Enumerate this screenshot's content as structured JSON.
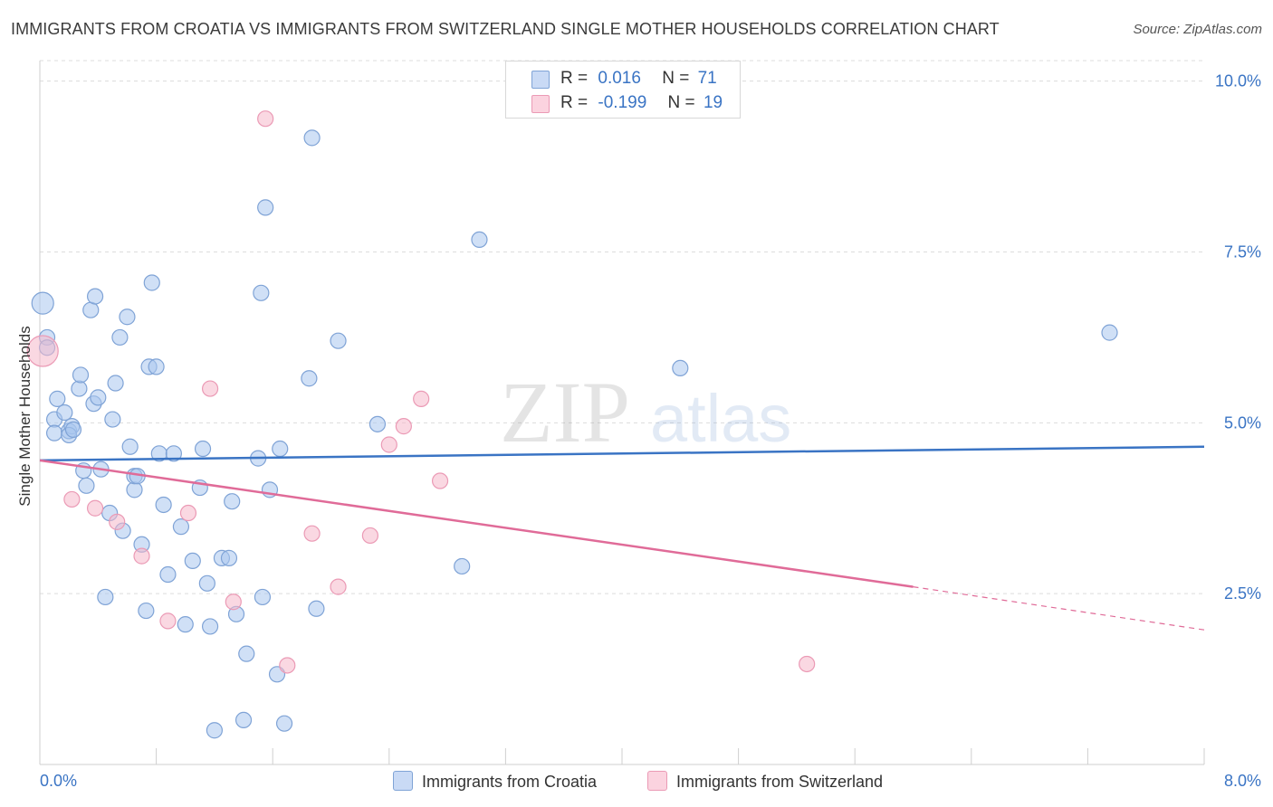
{
  "title": "IMMIGRANTS FROM CROATIA VS IMMIGRANTS FROM SWITZERLAND SINGLE MOTHER HOUSEHOLDS CORRELATION CHART",
  "source": "Source: ZipAtlas.com",
  "watermark": {
    "zip": "ZIP",
    "atlas": "atlas"
  },
  "legend_top": [
    {
      "r_label": "R =",
      "r_value": "0.016",
      "n_label": "N =",
      "n_value": "71",
      "color": "#a9c6ee"
    },
    {
      "r_label": "R =",
      "r_value": "-0.199",
      "n_label": "N =",
      "n_value": "19",
      "color": "#f6b8cb"
    }
  ],
  "chart_data": {
    "type": "scatter",
    "title": "IMMIGRANTS FROM CROATIA VS IMMIGRANTS FROM SWITZERLAND SINGLE MOTHER HOUSEHOLDS CORRELATION CHART",
    "xlabel": "",
    "ylabel": "Single Mother Households",
    "xlim": [
      0,
      8
    ],
    "ylim": [
      0,
      10.3
    ],
    "x_tick_labels": [
      "0.0%",
      "8.0%"
    ],
    "y_ticks": [
      2.5,
      5.0,
      7.5,
      10.0
    ],
    "y_tick_labels": [
      "2.5%",
      "5.0%",
      "7.5%",
      "10.0%"
    ],
    "grid": true,
    "legend_position": "bottom",
    "series": [
      {
        "name": "Immigrants from Croatia",
        "color": "#3a74c4",
        "fill": "#a9c6ee",
        "trend": {
          "x": [
            0.0,
            8.0
          ],
          "y": [
            4.45,
            4.65
          ]
        },
        "points": [
          [
            0.02,
            6.75
          ],
          [
            0.05,
            6.25
          ],
          [
            0.05,
            6.1
          ],
          [
            0.1,
            5.05
          ],
          [
            0.12,
            5.35
          ],
          [
            0.1,
            4.85
          ],
          [
            0.17,
            5.15
          ],
          [
            0.2,
            4.88
          ],
          [
            0.22,
            4.95
          ],
          [
            0.2,
            4.82
          ],
          [
            0.23,
            4.9
          ],
          [
            0.27,
            5.5
          ],
          [
            0.28,
            5.7
          ],
          [
            0.3,
            4.3
          ],
          [
            0.32,
            4.08
          ],
          [
            0.35,
            6.65
          ],
          [
            0.37,
            5.28
          ],
          [
            0.38,
            6.85
          ],
          [
            0.4,
            5.37
          ],
          [
            0.42,
            4.32
          ],
          [
            0.45,
            2.45
          ],
          [
            0.48,
            3.68
          ],
          [
            0.5,
            5.05
          ],
          [
            0.52,
            5.58
          ],
          [
            0.57,
            3.42
          ],
          [
            0.55,
            6.25
          ],
          [
            0.6,
            6.55
          ],
          [
            0.62,
            4.65
          ],
          [
            0.65,
            4.02
          ],
          [
            0.65,
            4.22
          ],
          [
            0.67,
            4.22
          ],
          [
            0.7,
            3.22
          ],
          [
            0.73,
            2.25
          ],
          [
            0.75,
            5.82
          ],
          [
            0.77,
            7.05
          ],
          [
            0.8,
            5.82
          ],
          [
            0.82,
            4.55
          ],
          [
            0.85,
            3.8
          ],
          [
            0.88,
            2.78
          ],
          [
            0.92,
            4.55
          ],
          [
            0.97,
            3.48
          ],
          [
            1.0,
            2.05
          ],
          [
            1.05,
            2.98
          ],
          [
            1.1,
            4.05
          ],
          [
            1.12,
            4.62
          ],
          [
            1.15,
            2.65
          ],
          [
            1.17,
            2.02
          ],
          [
            1.2,
            0.5
          ],
          [
            1.25,
            3.02
          ],
          [
            1.3,
            3.02
          ],
          [
            1.32,
            3.85
          ],
          [
            1.35,
            2.2
          ],
          [
            1.4,
            0.65
          ],
          [
            1.42,
            1.62
          ],
          [
            1.5,
            4.48
          ],
          [
            1.52,
            6.9
          ],
          [
            1.53,
            2.45
          ],
          [
            1.55,
            8.15
          ],
          [
            1.58,
            4.02
          ],
          [
            1.63,
            1.32
          ],
          [
            1.65,
            4.62
          ],
          [
            1.68,
            0.6
          ],
          [
            1.85,
            5.65
          ],
          [
            1.87,
            9.17
          ],
          [
            1.9,
            2.28
          ],
          [
            2.05,
            6.2
          ],
          [
            2.32,
            4.98
          ],
          [
            2.9,
            2.9
          ],
          [
            3.02,
            7.68
          ],
          [
            4.4,
            5.8
          ],
          [
            7.35,
            6.32
          ]
        ]
      },
      {
        "name": "Immigrants from Switzerland",
        "color": "#e06b98",
        "fill": "#f6b8cb",
        "trend": {
          "x": [
            0.0,
            6.0
          ],
          "y": [
            4.45,
            2.6
          ]
        },
        "trend_dashed": {
          "x": [
            6.0,
            8.0
          ],
          "y": [
            2.6,
            1.97
          ]
        },
        "points": [
          [
            0.02,
            6.05
          ],
          [
            0.22,
            3.88
          ],
          [
            0.38,
            3.75
          ],
          [
            0.53,
            3.55
          ],
          [
            0.7,
            3.05
          ],
          [
            0.88,
            2.1
          ],
          [
            1.02,
            3.68
          ],
          [
            1.17,
            5.5
          ],
          [
            1.33,
            2.38
          ],
          [
            1.55,
            9.45
          ],
          [
            1.7,
            1.45
          ],
          [
            1.87,
            3.38
          ],
          [
            2.05,
            2.6
          ],
          [
            2.27,
            3.35
          ],
          [
            2.4,
            4.68
          ],
          [
            2.5,
            4.95
          ],
          [
            2.62,
            5.35
          ],
          [
            2.75,
            4.15
          ],
          [
            5.27,
            1.47
          ]
        ]
      }
    ]
  }
}
